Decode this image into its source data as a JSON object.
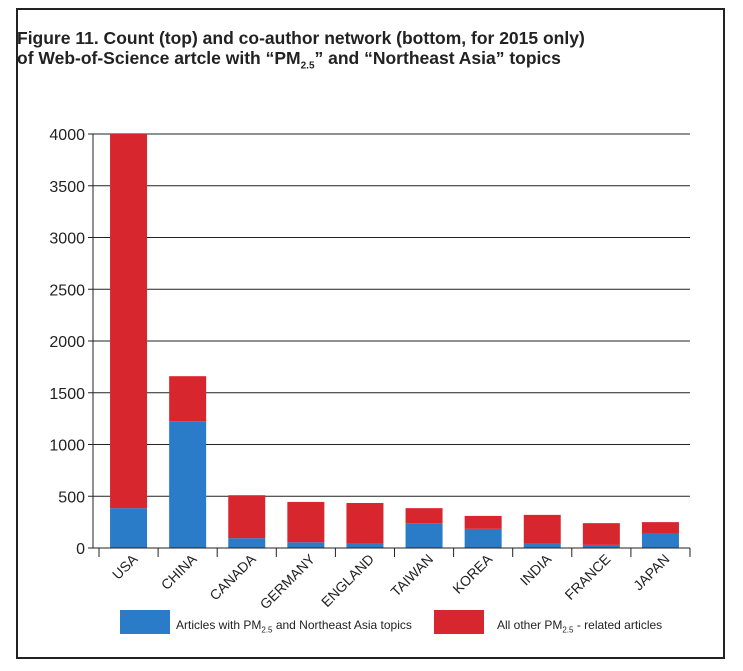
{
  "figure": {
    "title_line1": "Figure 11. Count (top) and co-author network (bottom, for 2015 only)",
    "title_line2_pre": "of Web-of-Science artcle with “PM",
    "title_line2_sub": "2.5",
    "title_line2_post": "” and “Northeast Asia” topics"
  },
  "legend": {
    "series1_pre": "Articles with PM",
    "series1_sub": "2.5",
    "series1_post": " and Northeast Asia topics",
    "series2_pre": "All other PM",
    "series2_sub": "2.5",
    "series2_post": " - related articles"
  },
  "colors": {
    "series1": "#2a7bc8",
    "series2": "#d8262f"
  },
  "chart_data": {
    "type": "bar",
    "stacked": true,
    "categories": [
      "USA",
      "CHINA",
      "CANADA",
      "GERMANY",
      "ENGLAND",
      "TAIWAN",
      "KOREA",
      "INDIA",
      "FRANCE",
      "JAPAN"
    ],
    "series": [
      {
        "name": "Articles with PM2.5 and Northeast Asia topics",
        "values": [
          385,
          1225,
          95,
          55,
          40,
          240,
          185,
          40,
          30,
          145
        ]
      },
      {
        "name": "All other PM2.5 - related articles",
        "values": [
          3615,
          435,
          415,
          390,
          395,
          145,
          125,
          280,
          210,
          105
        ]
      }
    ],
    "yticks": [
      0,
      500,
      1000,
      1500,
      2000,
      2500,
      3000,
      3500,
      4000
    ],
    "ylim": [
      0,
      4000
    ],
    "grid": true,
    "legend_position": "bottom"
  }
}
